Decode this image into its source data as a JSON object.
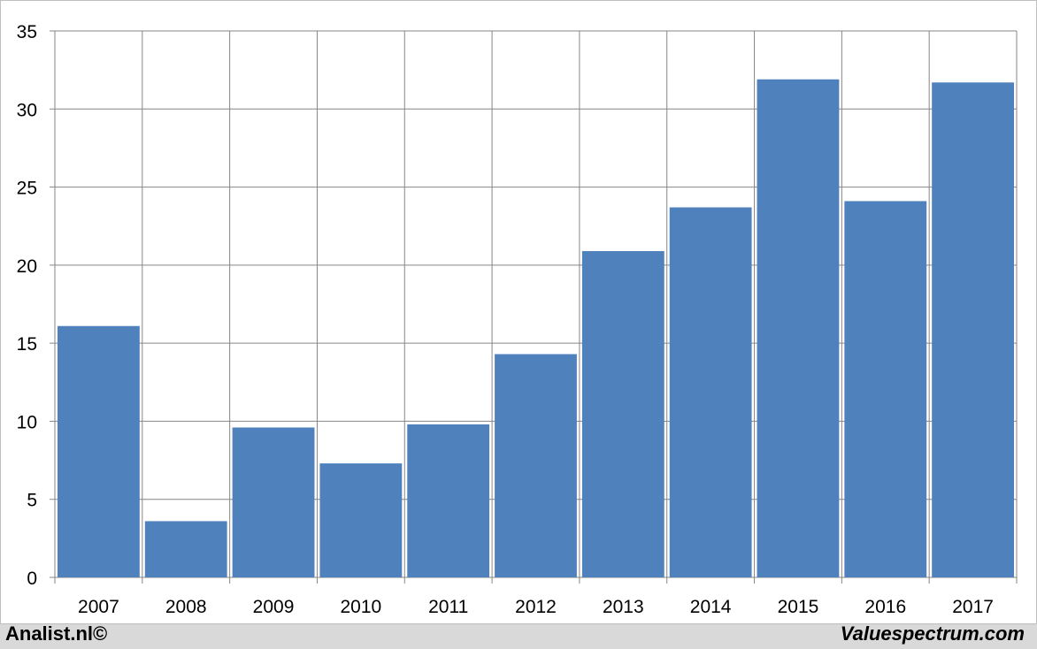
{
  "chart_data": {
    "type": "bar",
    "categories": [
      "2007",
      "2008",
      "2009",
      "2010",
      "2011",
      "2012",
      "2013",
      "2014",
      "2015",
      "2016",
      "2017"
    ],
    "values": [
      16.1,
      3.6,
      9.6,
      7.3,
      9.8,
      14.3,
      20.9,
      23.7,
      31.9,
      24.1,
      31.7
    ],
    "title": "",
    "xlabel": "",
    "ylabel": "",
    "ylim": [
      0,
      35
    ],
    "yticks": [
      "0",
      "5",
      "10",
      "15",
      "20",
      "25",
      "30",
      "35"
    ],
    "grid": true,
    "bar_color": "#4f81bd"
  },
  "footer": {
    "left": "Analist.nl©",
    "right": "Valuespectrum.com"
  }
}
